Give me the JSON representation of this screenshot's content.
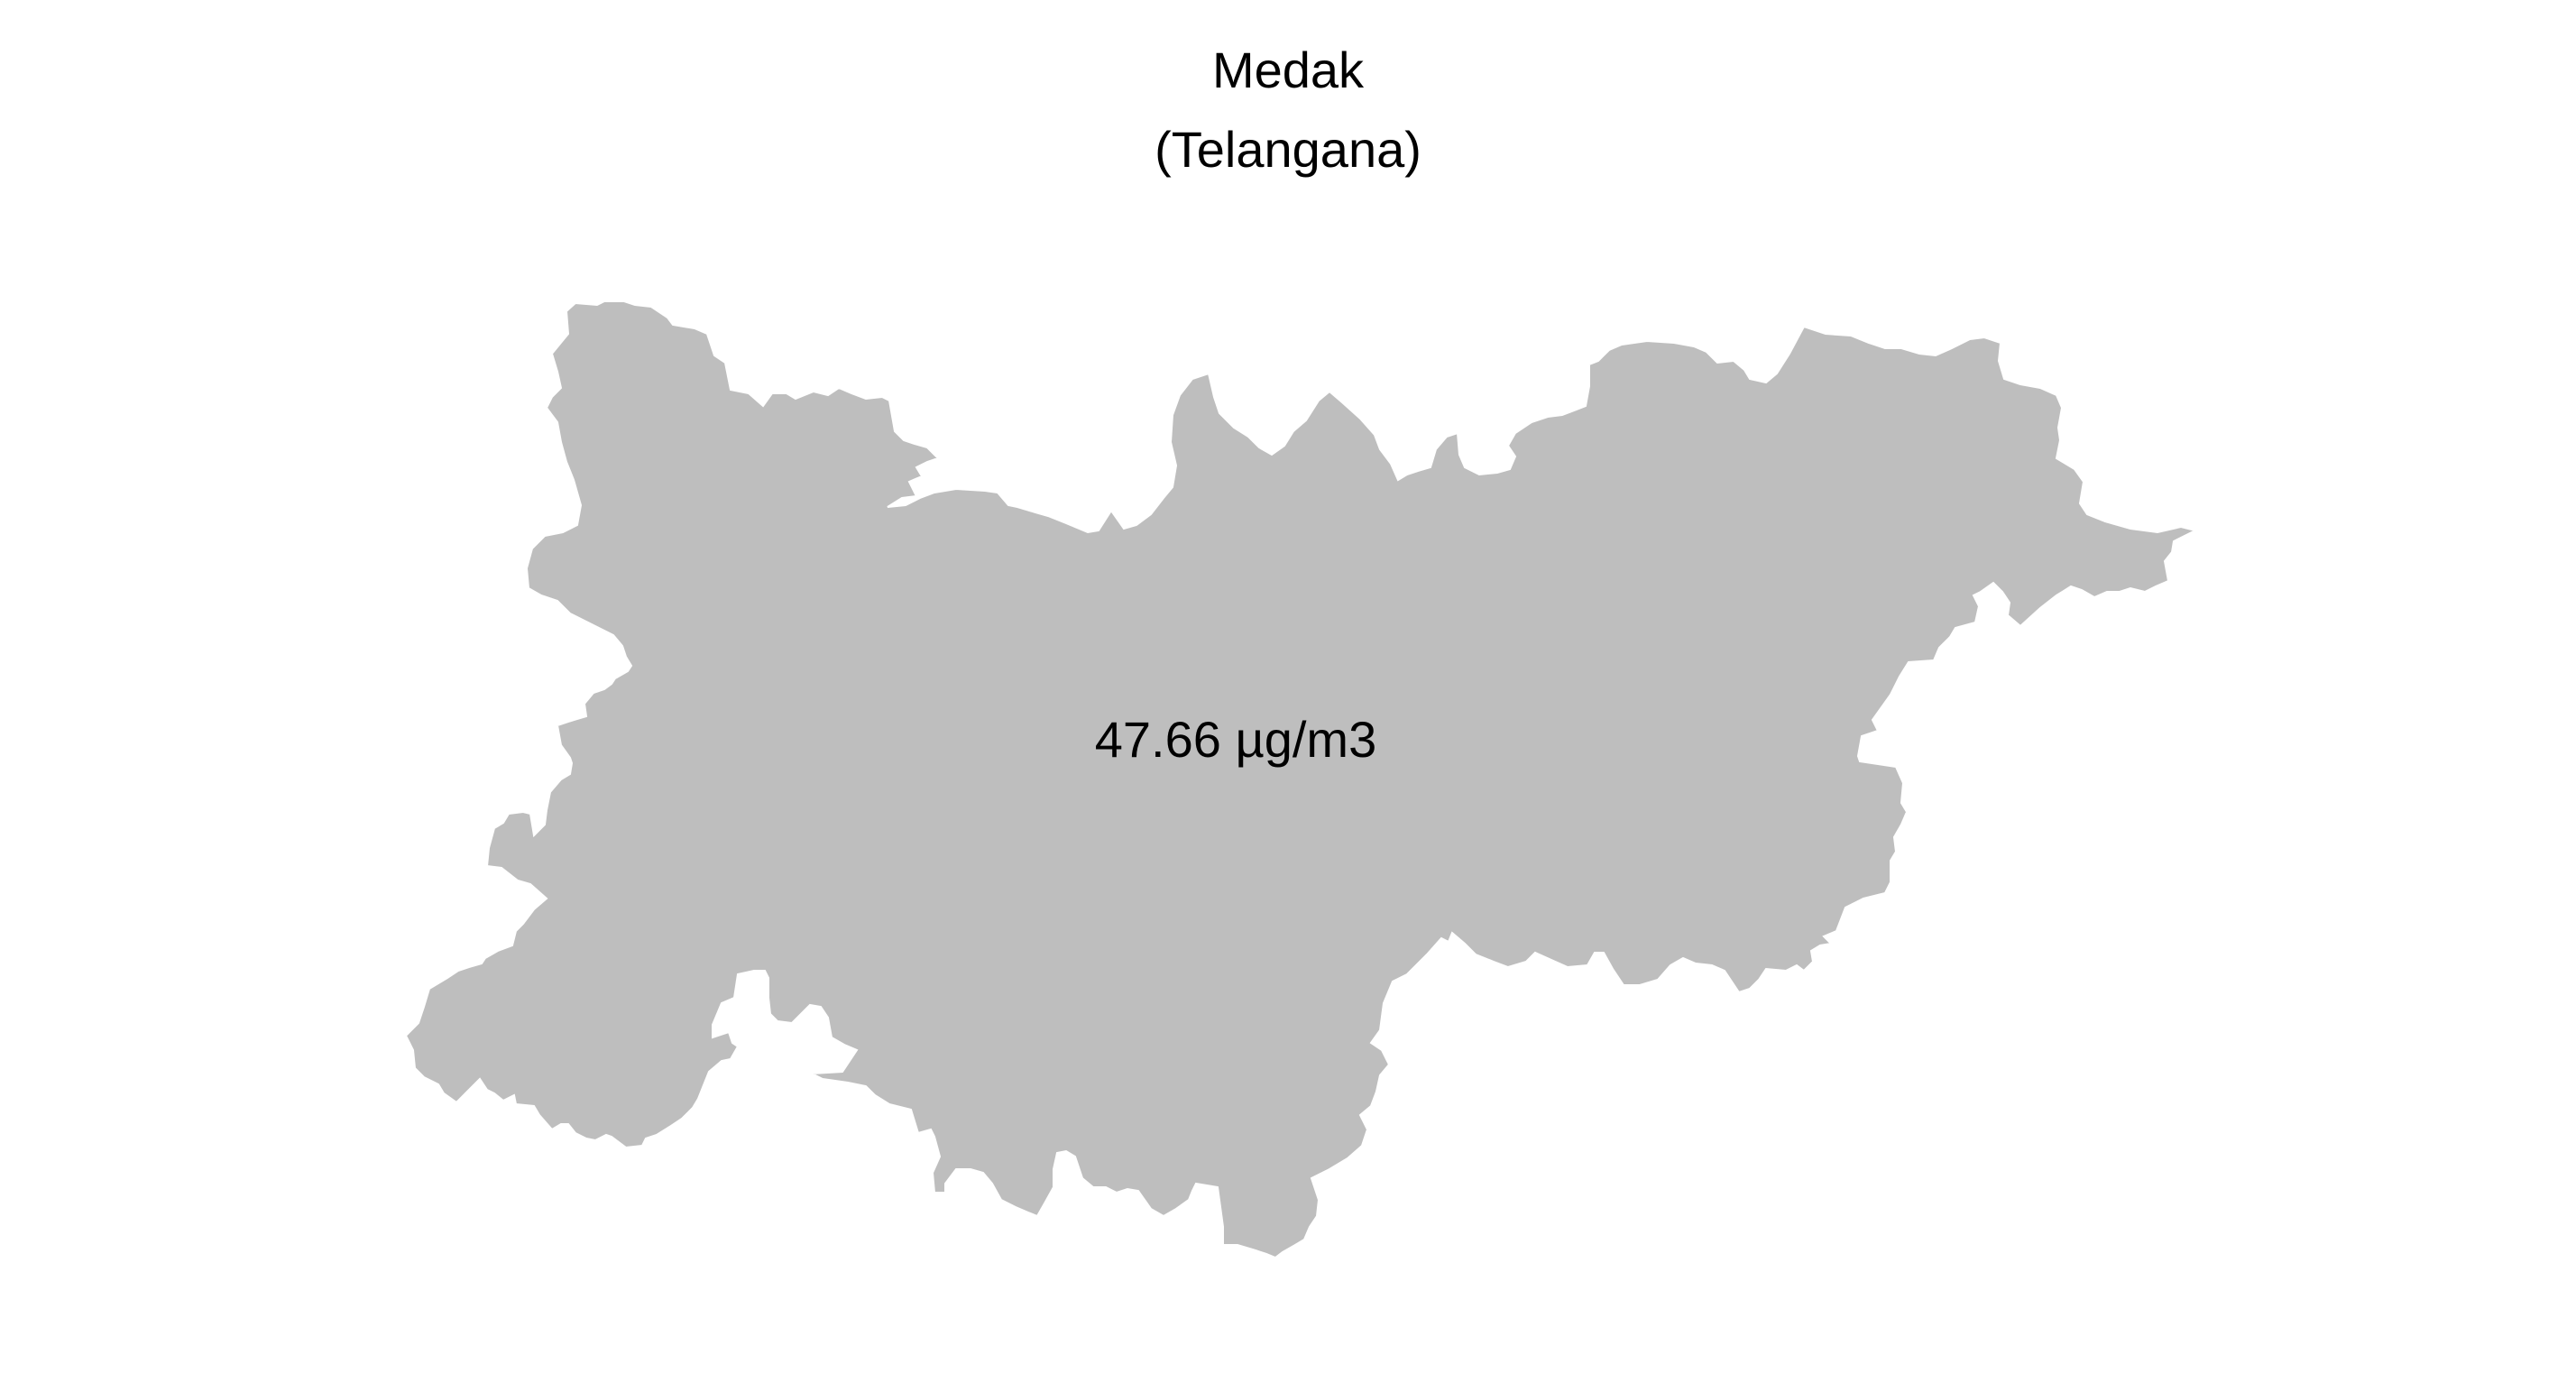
{
  "title": {
    "line1": "Medak",
    "line2": "(Telangana)"
  },
  "region": {
    "name": "Medak",
    "fill_color": "#bebebe"
  },
  "value_label": "47.66 µg/m3"
}
